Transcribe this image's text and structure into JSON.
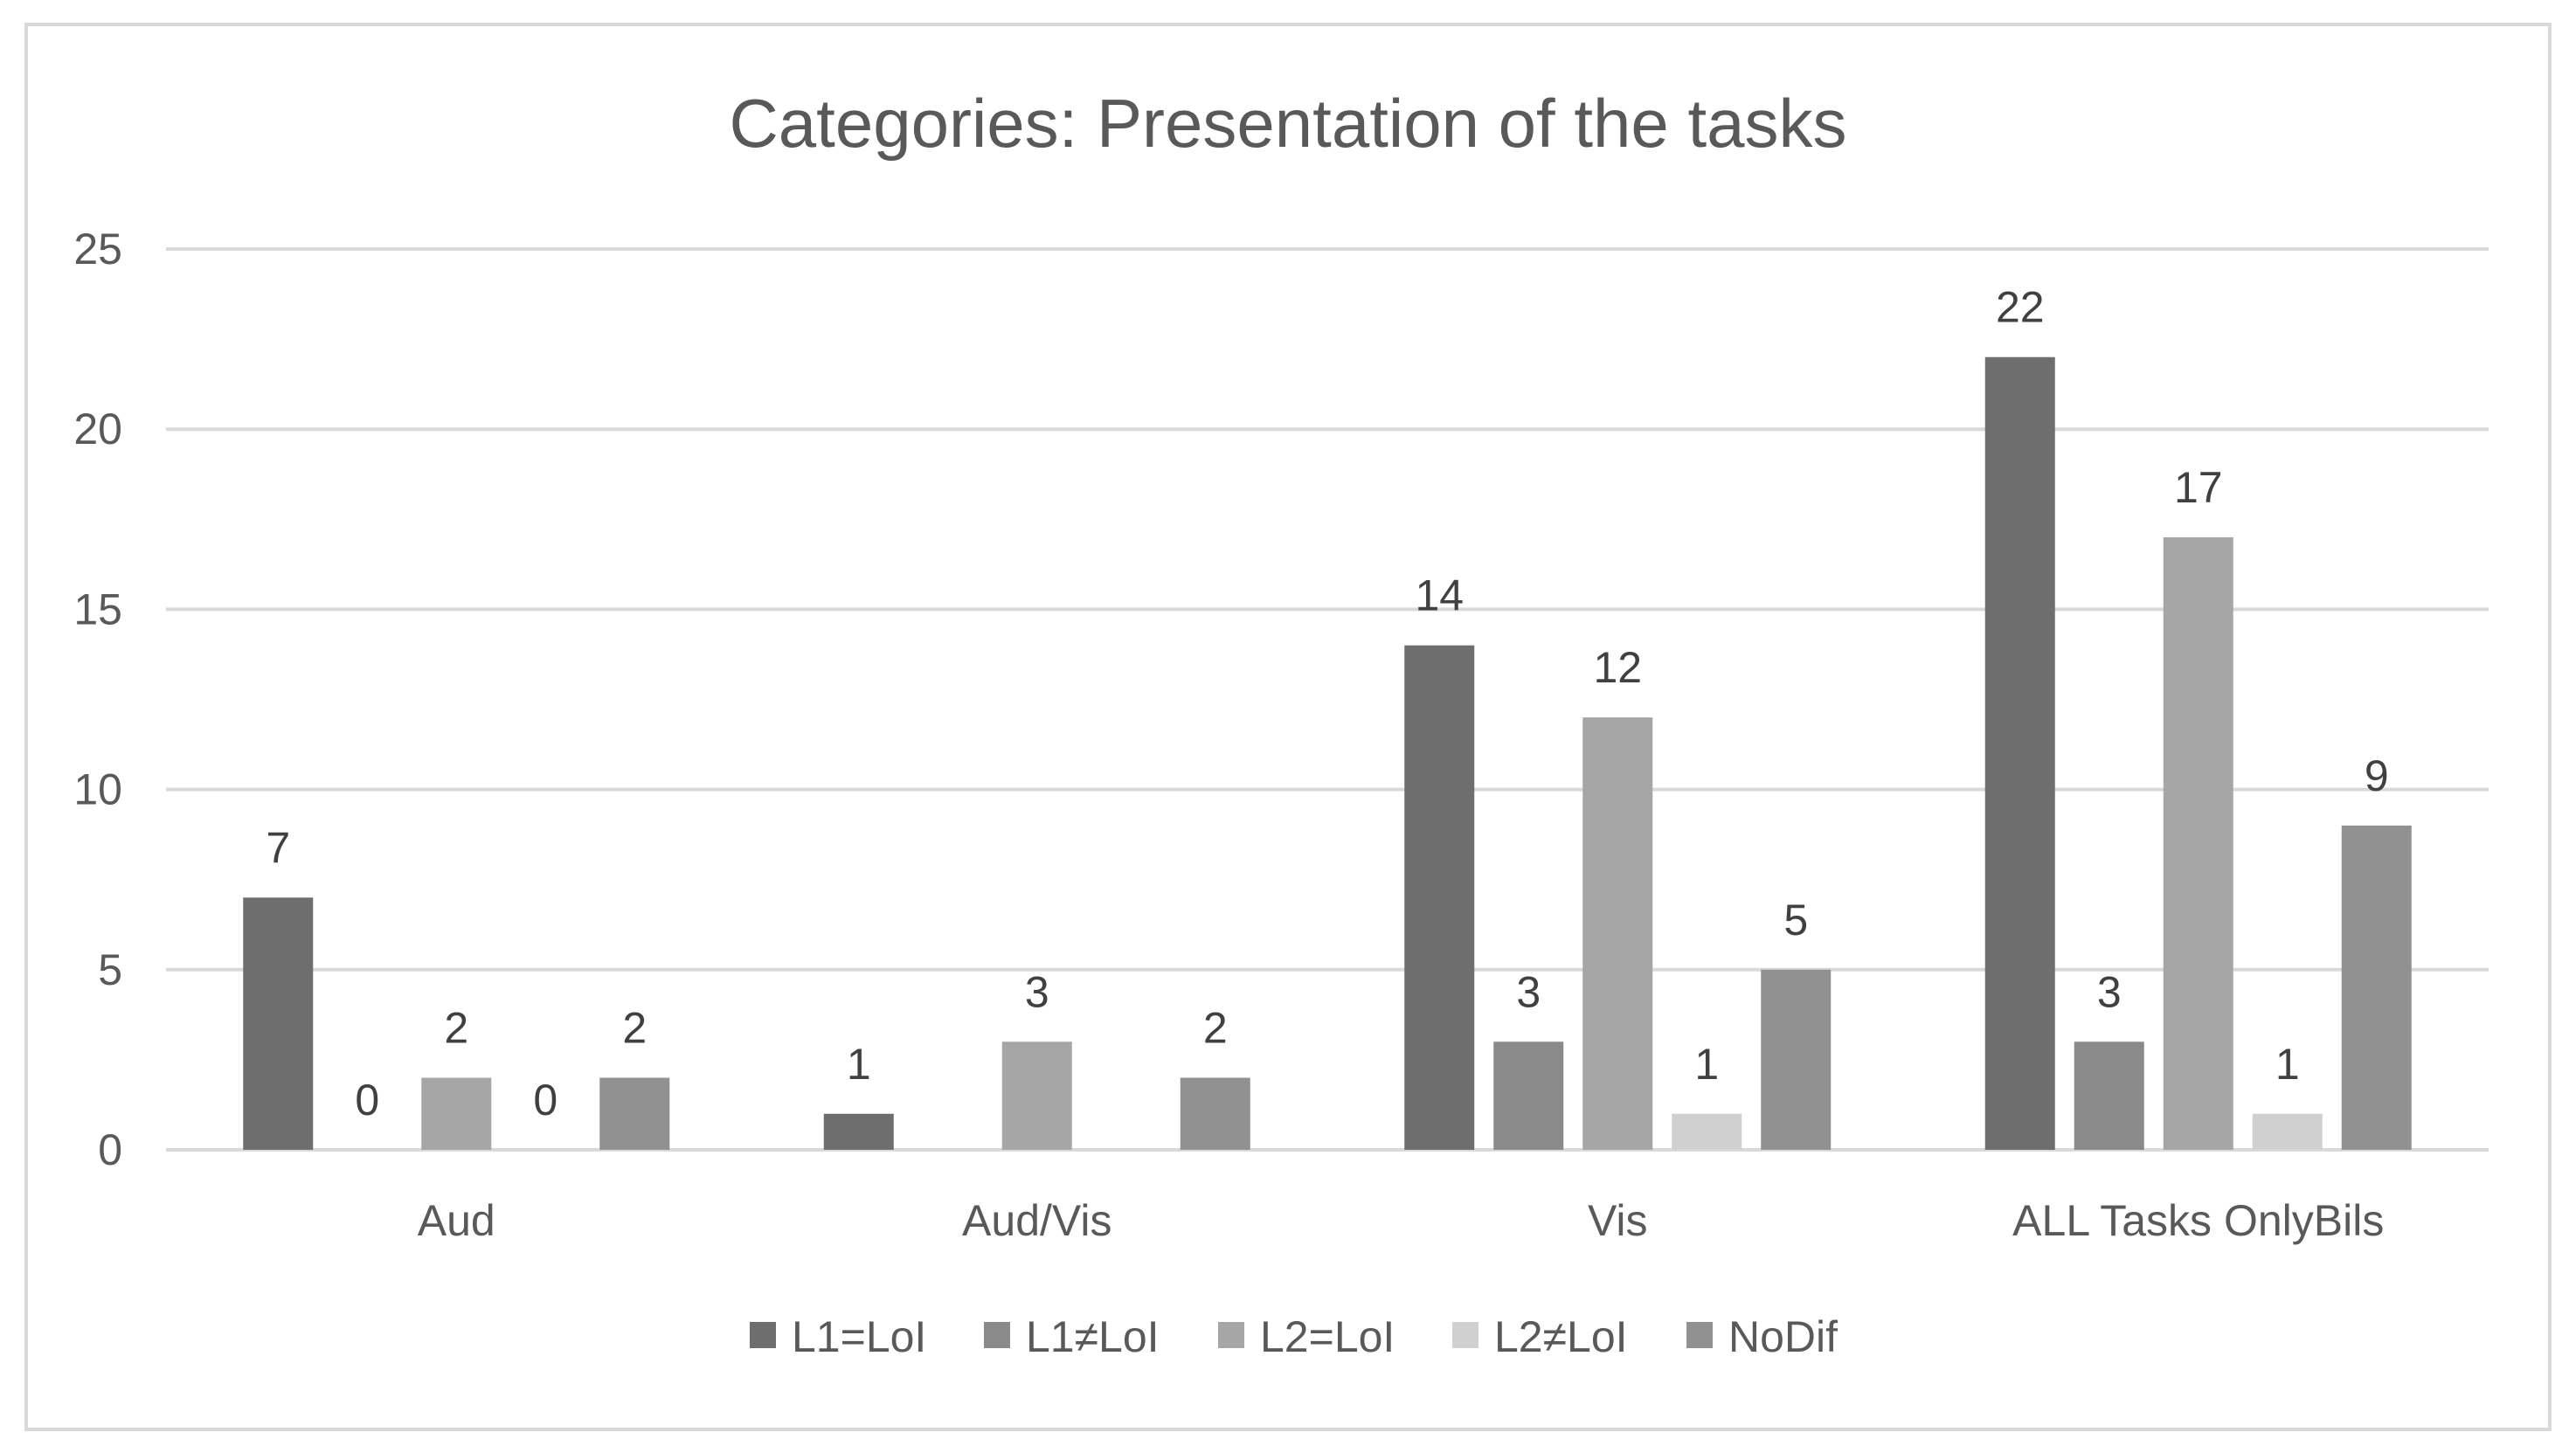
{
  "chart_data": {
    "type": "bar",
    "title": "Categories: Presentation of the tasks",
    "xlabel": "",
    "ylabel": "",
    "ylim": [
      0,
      25
    ],
    "yticks": [
      0,
      5,
      10,
      15,
      20,
      25
    ],
    "grid": true,
    "legend_position": "bottom",
    "categories": [
      "Aud",
      "Aud/Vis",
      "Vis",
      "ALL Tasks OnlyBils"
    ],
    "series": [
      {
        "name": "L1=LoI",
        "color": "#6e6e6e",
        "values": [
          7,
          1,
          14,
          22
        ],
        "labels": [
          "7",
          "1",
          "14",
          "22"
        ]
      },
      {
        "name": "L1≠LoI",
        "color": "#8a8a8a",
        "values": [
          0,
          null,
          3,
          3
        ],
        "labels": [
          "0",
          "",
          "3",
          "3"
        ]
      },
      {
        "name": "L2=LoI",
        "color": "#a6a6a6",
        "values": [
          2,
          3,
          12,
          17
        ],
        "labels": [
          "2",
          "3",
          "12",
          "17"
        ]
      },
      {
        "name": "L2≠LoI",
        "color": "#d0d0d0",
        "values": [
          0,
          null,
          1,
          1
        ],
        "labels": [
          "0",
          "",
          "1",
          "1"
        ]
      },
      {
        "name": "NoDif",
        "color": "#919191",
        "values": [
          2,
          2,
          5,
          9
        ],
        "labels": [
          "2",
          "2",
          "5",
          "9"
        ]
      }
    ]
  }
}
